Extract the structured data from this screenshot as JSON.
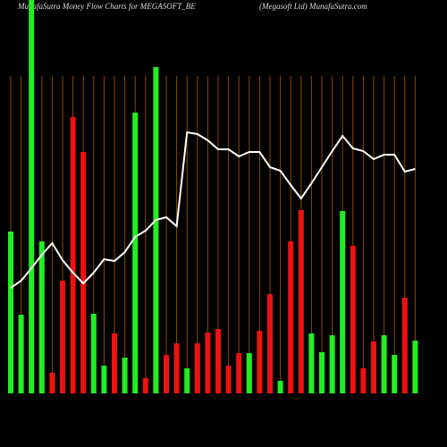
{
  "chart_data": {
    "type": "bar",
    "title": "MunafaSutra  Money Flow  Charts for MEGASOFT_BE",
    "subtitle": "(Megasoft Ltd) MunafaSutra.com",
    "categories": [
      null,
      null,
      null,
      null,
      null,
      null,
      null,
      null,
      null,
      null,
      null,
      null,
      null,
      null,
      null,
      null,
      null,
      null,
      null,
      null,
      null,
      null,
      null,
      null,
      null,
      null,
      null,
      null,
      null,
      null,
      null,
      null,
      null,
      null,
      null,
      null,
      null,
      null,
      null,
      null
    ],
    "values": [
      181,
      88,
      460,
      170,
      23,
      126,
      309,
      270,
      89,
      31,
      67,
      40,
      314,
      17,
      365,
      43,
      56,
      28,
      56,
      68,
      72,
      31,
      45,
      45,
      70,
      111,
      14,
      170,
      205,
      67,
      46,
      65,
      204,
      165,
      28,
      58,
      65,
      43,
      107,
      59
    ],
    "colors": [
      "#22ee22",
      "#22ee22",
      "#22ee22",
      "#22ee22",
      "#ee1111",
      "#ee1111",
      "#ee1111",
      "#ee1111",
      "#22ee22",
      "#22ee22",
      "#ee1111",
      "#22ee22",
      "#22ee22",
      "#ee1111",
      "#22ee22",
      "#ee1111",
      "#ee1111",
      "#22ee22",
      "#ee1111",
      "#ee1111",
      "#ee1111",
      "#ee1111",
      "#ee1111",
      "#22ee22",
      "#ee1111",
      "#ee1111",
      "#22ee22",
      "#ee1111",
      "#ee1111",
      "#22ee22",
      "#22ee22",
      "#22ee22",
      "#22ee22",
      "#ee1111",
      "#ee1111",
      "#ee1111",
      "#22ee22",
      "#22ee22",
      "#ee1111",
      "#22ee22"
    ],
    "line": {
      "color": "#ffffff",
      "values": [
        118,
        126,
        140,
        155,
        168,
        149,
        135,
        123,
        135,
        150,
        148,
        158,
        175,
        182,
        194,
        197,
        187,
        292,
        290,
        283,
        273,
        273,
        265,
        270,
        270,
        253,
        249,
        233,
        218,
        235,
        253,
        271,
        288,
        274,
        271,
        262,
        267,
        267,
        248,
        251
      ]
    },
    "ylim": [
      0,
      440
    ]
  }
}
